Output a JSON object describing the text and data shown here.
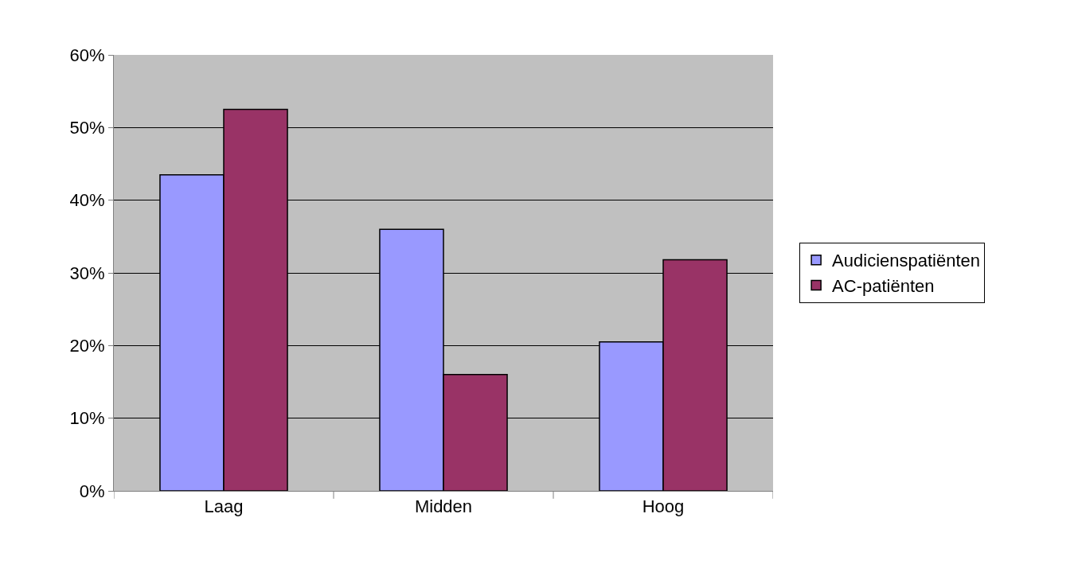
{
  "chart_data": {
    "type": "bar",
    "categories": [
      "Laag",
      "Midden",
      "Hoog"
    ],
    "series": [
      {
        "name": "Audicienspatiënten",
        "color": "#9999ff",
        "values": [
          43.5,
          36,
          20.5
        ]
      },
      {
        "name": "AC-patiënten",
        "color": "#993366",
        "values": [
          52.5,
          16,
          31.8
        ]
      }
    ],
    "ylim": [
      0,
      60
    ],
    "yticks": [
      {
        "value": 0,
        "label": "0%"
      },
      {
        "value": 10,
        "label": "10%"
      },
      {
        "value": 20,
        "label": "20%"
      },
      {
        "value": 30,
        "label": "30%"
      },
      {
        "value": 40,
        "label": "40%"
      },
      {
        "value": 50,
        "label": "50%"
      },
      {
        "value": 60,
        "label": "60%"
      }
    ],
    "grid": "y",
    "legend": "right"
  }
}
